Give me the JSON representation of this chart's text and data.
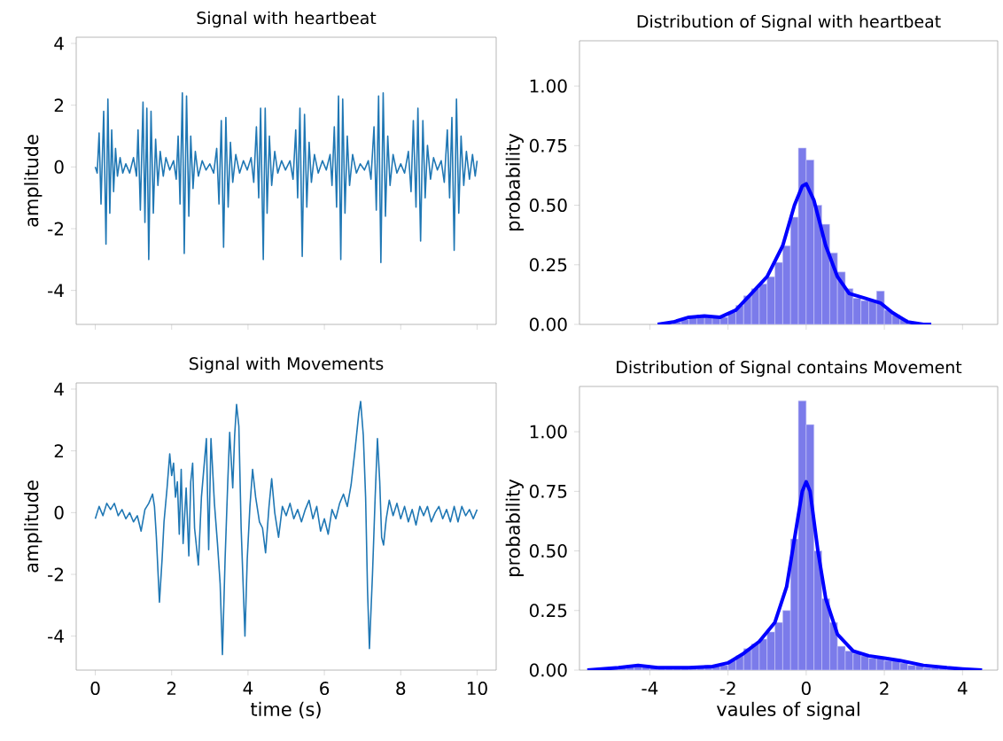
{
  "chart_data": [
    {
      "type": "line",
      "title": "Signal with heartbeat",
      "ylabel": "amplitude",
      "color": "#1f77b4",
      "xlim": [
        -0.5,
        10.5
      ],
      "ylim": [
        -5.1,
        4.2
      ],
      "xticks": [
        0,
        2,
        4,
        6,
        8,
        10
      ],
      "yticks": [
        -4,
        -2,
        0,
        2,
        4
      ],
      "tick_labels": "y",
      "x": [
        0.0,
        0.05,
        0.1,
        0.15,
        0.22,
        0.28,
        0.33,
        0.38,
        0.43,
        0.48,
        0.53,
        0.58,
        0.65,
        0.72,
        0.8,
        0.9,
        1.0,
        1.08,
        1.12,
        1.18,
        1.25,
        1.3,
        1.35,
        1.4,
        1.46,
        1.52,
        1.58,
        1.64,
        1.7,
        1.78,
        1.85,
        1.95,
        2.05,
        2.12,
        2.17,
        2.22,
        2.28,
        2.33,
        2.39,
        2.45,
        2.5,
        2.56,
        2.62,
        2.7,
        2.8,
        2.9,
        3.0,
        3.1,
        3.18,
        3.24,
        3.3,
        3.36,
        3.42,
        3.48,
        3.54,
        3.6,
        3.68,
        3.78,
        3.88,
        3.98,
        4.08,
        4.15,
        4.22,
        4.28,
        4.33,
        4.4,
        4.45,
        4.5,
        4.56,
        4.62,
        4.7,
        4.78,
        4.88,
        4.98,
        5.1,
        5.18,
        5.25,
        5.3,
        5.36,
        5.42,
        5.48,
        5.54,
        5.6,
        5.66,
        5.74,
        5.84,
        5.95,
        6.05,
        6.15,
        6.2,
        6.26,
        6.32,
        6.37,
        6.43,
        6.48,
        6.54,
        6.6,
        6.66,
        6.74,
        6.84,
        6.94,
        7.05,
        7.15,
        7.22,
        7.3,
        7.36,
        7.42,
        7.48,
        7.54,
        7.6,
        7.66,
        7.72,
        7.8,
        7.9,
        8.0,
        8.1,
        8.2,
        8.27,
        8.33,
        8.4,
        8.45,
        8.52,
        8.58,
        8.64,
        8.7,
        8.78,
        8.86,
        8.96,
        9.06,
        9.14,
        9.22,
        9.28,
        9.34,
        9.4,
        9.46,
        9.52,
        9.58,
        9.65,
        9.72,
        9.8,
        9.88,
        9.95,
        10.0
      ],
      "values": [
        0,
        -0.2,
        1.1,
        -1.2,
        1.8,
        -2.5,
        2.2,
        -1.5,
        1.2,
        -0.8,
        0.6,
        -0.3,
        0.3,
        -0.2,
        0.1,
        -0.2,
        0.3,
        -0.3,
        1.2,
        -1.4,
        2.1,
        -1.8,
        1.9,
        -3.0,
        1.8,
        -1.5,
        0.9,
        -0.6,
        0.5,
        -0.3,
        0.3,
        -0.1,
        0.2,
        -0.4,
        1.0,
        -1.2,
        2.4,
        -2.8,
        2.3,
        -1.6,
        1.0,
        -0.7,
        0.5,
        -0.3,
        0.2,
        -0.1,
        0.1,
        -0.2,
        0.6,
        -1.2,
        1.5,
        -2.6,
        1.6,
        -1.3,
        0.8,
        -0.5,
        0.4,
        -0.2,
        0.2,
        -0.1,
        0.3,
        -0.5,
        1.3,
        -1.0,
        1.9,
        -3.0,
        1.9,
        -1.5,
        1.0,
        -0.6,
        0.5,
        -0.2,
        0.2,
        -0.1,
        0.2,
        -0.4,
        1.2,
        -1.0,
        1.9,
        -2.9,
        1.7,
        -1.3,
        0.8,
        -0.5,
        0.4,
        -0.2,
        0.2,
        -0.1,
        0.4,
        -0.6,
        1.3,
        -1.3,
        2.3,
        -3.0,
        2.2,
        -1.5,
        1.0,
        -0.6,
        0.4,
        -0.2,
        0.1,
        -0.1,
        0.2,
        -0.4,
        1.3,
        -1.4,
        2.3,
        -3.1,
        2.4,
        -1.6,
        1.0,
        -0.6,
        0.4,
        -0.2,
        0.1,
        -0.2,
        0.5,
        -0.8,
        1.5,
        -1.3,
        1.9,
        -2.4,
        1.5,
        -1.0,
        0.7,
        -0.4,
        0.3,
        -0.1,
        0.2,
        -0.5,
        1.2,
        -1.0,
        1.6,
        -2.7,
        2.2,
        -1.5,
        1.0,
        -0.6,
        0.5,
        -0.4,
        0.4,
        -0.3,
        0.2
      ]
    },
    {
      "type": "histogram",
      "title": "Distribution of Signal with heartbeat",
      "ylabel": "probability",
      "color": "#7b7bea",
      "xlim": [
        -5.8,
        4.9
      ],
      "ylim": [
        0,
        1.19
      ],
      "xticks": [
        -4,
        -2,
        0,
        2,
        4
      ],
      "yticks": [
        {
          "value": 0,
          "label": "0.00"
        },
        {
          "value": 0.25,
          "label": "0.25"
        },
        {
          "value": 0.5,
          "label": "0.50"
        },
        {
          "value": 0.75,
          "label": "0.75"
        },
        {
          "value": 1,
          "label": "1.00"
        }
      ],
      "tick_labels": "y",
      "bins": [
        -3.8,
        -3.6,
        -3.4,
        -3.2,
        -3.0,
        -2.8,
        -2.6,
        -2.4,
        -2.2,
        -2.0,
        -1.8,
        -1.6,
        -1.4,
        -1.2,
        -1.0,
        -0.8,
        -0.6,
        -0.4,
        -0.2,
        0.0,
        0.2,
        0.4,
        0.6,
        0.8,
        1.0,
        1.2,
        1.4,
        1.6,
        1.8,
        2.0,
        2.2,
        2.4,
        2.6,
        2.8,
        3.0,
        3.2
      ],
      "values": [
        0.005,
        null,
        0.01,
        0.02,
        0.03,
        0.04,
        0.03,
        0.03,
        0.03,
        0.05,
        0.08,
        0.12,
        0.15,
        0.17,
        0.2,
        0.26,
        0.33,
        0.45,
        0.74,
        0.69,
        0.5,
        0.42,
        0.3,
        0.22,
        0.15,
        0.11,
        0.1,
        0.1,
        0.14,
        0.06,
        0.04,
        0.02,
        null,
        0.005,
        0.005
      ],
      "series": [
        {
          "type": "line",
          "color": "#0000ff",
          "x": [
            -3.8,
            -3.4,
            -3.0,
            -2.6,
            -2.2,
            -1.8,
            -1.4,
            -1.0,
            -0.6,
            -0.3,
            -0.1,
            0.0,
            0.2,
            0.5,
            0.8,
            1.1,
            1.5,
            1.9,
            2.2,
            2.6,
            3.0,
            3.2
          ],
          "values": [
            0,
            0.01,
            0.03,
            0.035,
            0.03,
            0.06,
            0.13,
            0.2,
            0.33,
            0.5,
            0.58,
            0.59,
            0.52,
            0.33,
            0.2,
            0.13,
            0.11,
            0.09,
            0.05,
            0.01,
            0,
            0
          ]
        }
      ]
    },
    {
      "type": "line",
      "title": "Signal with Movements",
      "xlabel": "time (s)",
      "ylabel": "amplitude",
      "color": "#1f77b4",
      "xlim": [
        -0.5,
        10.5
      ],
      "ylim": [
        -5.1,
        4.2
      ],
      "xticks": [
        0,
        2,
        4,
        6,
        8,
        10
      ],
      "yticks": [
        -4,
        -2,
        0,
        2,
        4
      ],
      "x": [
        0,
        0.1,
        0.2,
        0.3,
        0.4,
        0.5,
        0.6,
        0.7,
        0.8,
        0.9,
        1.0,
        1.1,
        1.2,
        1.3,
        1.4,
        1.5,
        1.55,
        1.6,
        1.68,
        1.75,
        1.8,
        1.88,
        1.95,
        2.0,
        2.05,
        2.1,
        2.15,
        2.2,
        2.25,
        2.3,
        2.38,
        2.45,
        2.5,
        2.55,
        2.6,
        2.7,
        2.78,
        2.91,
        2.97,
        3.03,
        3.12,
        3.2,
        3.27,
        3.33,
        3.4,
        3.47,
        3.52,
        3.6,
        3.65,
        3.7,
        3.76,
        3.82,
        3.92,
        3.98,
        4.05,
        4.12,
        4.2,
        4.3,
        4.38,
        4.46,
        4.55,
        4.62,
        4.7,
        4.8,
        4.9,
        5.0,
        5.1,
        5.2,
        5.3,
        5.4,
        5.5,
        5.6,
        5.7,
        5.8,
        5.9,
        6.0,
        6.1,
        6.2,
        6.3,
        6.4,
        6.5,
        6.6,
        6.7,
        6.8,
        6.9,
        6.95,
        7.02,
        7.08,
        7.13,
        7.18,
        7.26,
        7.33,
        7.39,
        7.45,
        7.5,
        7.55,
        7.62,
        7.7,
        7.8,
        7.9,
        8.0,
        8.1,
        8.2,
        8.3,
        8.4,
        8.5,
        8.6,
        8.7,
        8.8,
        8.9,
        9.0,
        9.1,
        9.2,
        9.3,
        9.4,
        9.5,
        9.6,
        9.7,
        9.8,
        9.9,
        10.0
      ],
      "values": [
        -0.2,
        0.2,
        -0.1,
        0.3,
        0.1,
        0.3,
        -0.1,
        0.1,
        -0.2,
        0.0,
        -0.3,
        -0.1,
        -0.6,
        0.1,
        0.3,
        0.6,
        0.2,
        -0.8,
        -2.9,
        -1.5,
        -0.3,
        0.8,
        1.9,
        1.2,
        1.6,
        0.5,
        1.0,
        -0.7,
        1.4,
        -1.0,
        0.8,
        -1.4,
        1.0,
        1.6,
        -0.5,
        -1.7,
        0.5,
        2.4,
        -1.2,
        2.4,
        0.3,
        -1.0,
        -2.3,
        -4.6,
        -1.5,
        1.0,
        2.6,
        0.8,
        2.5,
        3.5,
        2.8,
        -0.5,
        -4.0,
        -1.5,
        0.2,
        1.4,
        0.5,
        -0.3,
        -0.5,
        -1.3,
        0.2,
        1.1,
        0.0,
        -0.8,
        0.2,
        -0.1,
        0.3,
        -0.2,
        0.1,
        -0.3,
        0.1,
        0.4,
        -0.2,
        0.2,
        -0.6,
        -0.2,
        -0.7,
        0.1,
        -0.2,
        0.3,
        0.6,
        0.2,
        0.9,
        2.0,
        3.2,
        3.6,
        2.5,
        0.5,
        -2.5,
        -4.4,
        -2.0,
        0.5,
        2.4,
        1.0,
        -0.8,
        -1.05,
        -0.2,
        0.4,
        -0.1,
        0.3,
        -0.2,
        0.2,
        -0.3,
        0.1,
        -0.4,
        0.2,
        -0.1,
        0.2,
        -0.3,
        0.0,
        0.2,
        -0.2,
        0.1,
        -0.3,
        0.2,
        -0.3,
        0.2,
        -0.1,
        0.1,
        -0.2,
        0.1
      ]
    },
    {
      "type": "histogram",
      "title": "Distribution of Signal contains Movement",
      "xlabel": "vaules of signal",
      "ylabel": "probability",
      "color": "#7b7bea",
      "xlim": [
        -5.8,
        4.9
      ],
      "ylim": [
        0,
        1.19
      ],
      "xticks": [
        -4,
        -2,
        0,
        2,
        4
      ],
      "yticks": [
        {
          "value": 0,
          "label": "0.00"
        },
        {
          "value": 0.25,
          "label": "0.25"
        },
        {
          "value": 0.5,
          "label": "0.50"
        },
        {
          "value": 0.75,
          "label": "0.75"
        },
        {
          "value": 1,
          "label": "1.00"
        }
      ],
      "bins": [
        -5.6,
        -5.4,
        -5.2,
        -5.0,
        -4.8,
        -4.6,
        -4.4,
        -4.2,
        -4.0,
        -3.8,
        -3.6,
        -3.4,
        -3.2,
        -3.0,
        -2.8,
        -2.6,
        -2.4,
        -2.2,
        -2.0,
        -1.8,
        -1.6,
        -1.4,
        -1.2,
        -1.0,
        -0.8,
        -0.6,
        -0.4,
        -0.2,
        0.0,
        0.2,
        0.4,
        0.6,
        0.8,
        1.0,
        1.2,
        1.4,
        1.6,
        1.8,
        2.0,
        2.2,
        2.4,
        2.6,
        2.8,
        3.0,
        3.2,
        3.4,
        3.6,
        3.8,
        4.0,
        4.2,
        4.4,
        4.6
      ],
      "values": [
        null,
        0.005,
        0.005,
        0.005,
        0.01,
        0.02,
        0.02,
        0.02,
        0.01,
        0.01,
        0.01,
        0.01,
        0.01,
        0.01,
        0.01,
        0.02,
        0.02,
        0.02,
        0.04,
        0.06,
        0.09,
        0.11,
        0.13,
        0.16,
        0.2,
        0.25,
        0.55,
        1.13,
        1.03,
        0.5,
        0.3,
        0.2,
        0.1,
        0.08,
        0.07,
        0.06,
        0.05,
        0.05,
        0.04,
        0.04,
        0.03,
        0.02,
        0.02,
        0.01,
        0.01,
        0.01,
        0.005,
        0.005,
        0.005,
        0.005,
        null
      ],
      "series": [
        {
          "type": "line",
          "color": "#0000ff",
          "x": [
            -5.6,
            -4.8,
            -4.3,
            -3.8,
            -3.0,
            -2.4,
            -2.0,
            -1.6,
            -1.2,
            -0.8,
            -0.5,
            -0.3,
            -0.1,
            0.0,
            0.1,
            0.3,
            0.5,
            0.8,
            1.2,
            1.6,
            2.0,
            2.4,
            3.0,
            3.6,
            4.0,
            4.5
          ],
          "values": [
            0,
            0.01,
            0.02,
            0.01,
            0.01,
            0.015,
            0.03,
            0.07,
            0.12,
            0.2,
            0.35,
            0.55,
            0.75,
            0.79,
            0.75,
            0.5,
            0.3,
            0.15,
            0.08,
            0.06,
            0.05,
            0.04,
            0.02,
            0.01,
            0.005,
            0
          ]
        }
      ]
    }
  ]
}
